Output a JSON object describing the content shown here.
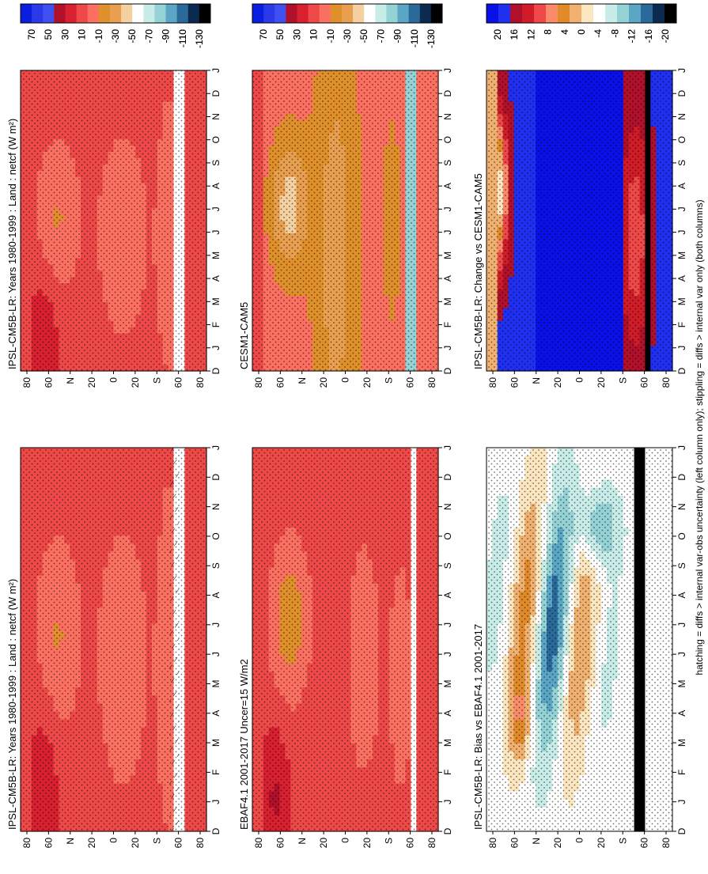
{
  "figure": {
    "footnote": "hatching = diffs > internal var-obs uncertainty (left column only); stippling = diffs > internal var only (both columns)"
  },
  "scales": {
    "absolute": {
      "labels": [
        "70",
        "50",
        "30",
        "10",
        "-10",
        "-30",
        "-50",
        "-70",
        "-90",
        "-110",
        "-130"
      ],
      "colors": [
        "#0a1ee0",
        "#2a3ae8",
        "#4050f0",
        "#b0102a",
        "#d82030",
        "#ee4848",
        "#fb7060",
        "#e0902a",
        "#e8a050",
        "#f5d0a0",
        "#ffffff",
        "#c8ece8",
        "#94d2d6",
        "#5aa6c4",
        "#2a6a9a",
        "#0c2a50",
        "#000000"
      ]
    },
    "difference": {
      "labels": [
        "20",
        "16",
        "12",
        "8",
        "4",
        "0",
        "-4",
        "-8",
        "-12",
        "-16",
        "-20"
      ],
      "colors": [
        "#0a10e8",
        "#2030f0",
        "#b0102a",
        "#d01c28",
        "#ee4848",
        "#fa8a6a",
        "#e08a2a",
        "#f0b070",
        "#fbe6c0",
        "#ffffff",
        "#c8ece8",
        "#94d2d6",
        "#5aa6c4",
        "#2a6a9a",
        "#0c2a50",
        "#000000"
      ]
    }
  },
  "chart_data": [
    {
      "id": "p1",
      "type": "heatmap",
      "title": "IPSL-CM5B-LR: Years 1980-1999 : Land : netcf (W m²)",
      "x": [
        "D",
        "J",
        "F",
        "M",
        "A",
        "M",
        "J",
        "J",
        "A",
        "S",
        "O",
        "N",
        "D",
        "J"
      ],
      "y": [
        "80",
        "60",
        "N",
        "20",
        "0",
        "20",
        "S",
        "60",
        "80"
      ],
      "scale": "absolute",
      "variant": "model",
      "hatched": true
    },
    {
      "id": "p2",
      "type": "heatmap",
      "title": "IPSL-CM5B-LR: Years 1980-1999 : Land : netcf (W m²)",
      "x": [
        "D",
        "J",
        "F",
        "M",
        "A",
        "M",
        "J",
        "J",
        "A",
        "S",
        "O",
        "N",
        "D",
        "J"
      ],
      "y": [
        "80",
        "60",
        "N",
        "20",
        "0",
        "20",
        "S",
        "60",
        "80"
      ],
      "scale": "absolute",
      "variant": "model",
      "hatched": false
    },
    {
      "id": "p3",
      "type": "heatmap",
      "title": "EBAF4.1 2001-2017 Uncer=15 W/m2",
      "x": [
        "D",
        "J",
        "F",
        "M",
        "A",
        "M",
        "J",
        "J",
        "A",
        "S",
        "O",
        "N",
        "D",
        "J"
      ],
      "y": [
        "80",
        "60",
        "N",
        "20",
        "0",
        "20",
        "S",
        "60",
        "80"
      ],
      "scale": "absolute",
      "variant": "obs",
      "hatched": false
    },
    {
      "id": "p4",
      "type": "heatmap",
      "title": "CESM1-CAM5",
      "x": [
        "D",
        "J",
        "F",
        "M",
        "A",
        "M",
        "J",
        "J",
        "A",
        "S",
        "O",
        "N",
        "D",
        "J"
      ],
      "y": [
        "80",
        "60",
        "N",
        "20",
        "0",
        "20",
        "S",
        "60",
        "80"
      ],
      "scale": "absolute",
      "variant": "cesm",
      "hatched": false
    },
    {
      "id": "p5",
      "type": "heatmap",
      "title": "IPSL-CM5B-LR: Bias vs EBAF4.1 2001-2017",
      "x": [
        "D",
        "J",
        "F",
        "M",
        "A",
        "M",
        "J",
        "J",
        "A",
        "S",
        "O",
        "N",
        "D",
        "J"
      ],
      "y": [
        "80",
        "60",
        "N",
        "20",
        "0",
        "20",
        "S",
        "60",
        "80"
      ],
      "scale": "difference",
      "variant": "bias",
      "hatched": false
    },
    {
      "id": "p6",
      "type": "heatmap",
      "title": "IPSL-CM5B-LR: Change vs CESM1-CAM5",
      "x": [
        "D",
        "J",
        "F",
        "M",
        "A",
        "M",
        "J",
        "J",
        "A",
        "S",
        "O",
        "N",
        "D",
        "J"
      ],
      "y": [
        "80",
        "60",
        "N",
        "20",
        "0",
        "20",
        "S",
        "60",
        "80"
      ],
      "scale": "difference",
      "variant": "change",
      "hatched": false
    }
  ]
}
